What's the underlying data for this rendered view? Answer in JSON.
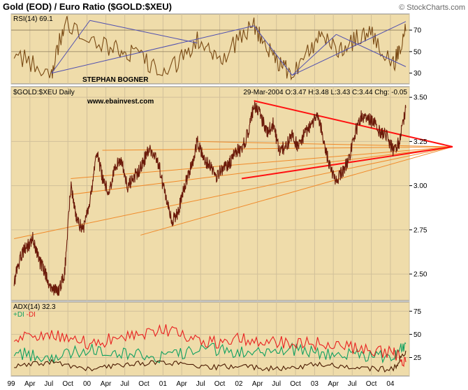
{
  "header": {
    "title": "Gold (EOD) / Euro Ratio ($GOLD:$XEU)",
    "copyright": "© StockCharts.com"
  },
  "colors": {
    "panel_bg": "#efdcaa",
    "grid": "#d1c09a",
    "price": "#6b1a0a",
    "rsi": "#7a4a14",
    "fan": "#f08a2a",
    "trend": "#ff1010",
    "channel": "#5050b0",
    "di_plus": "#10a060",
    "di_minus": "#e82020",
    "adx": "#4a1a00"
  },
  "chart_data": [
    {
      "type": "line",
      "panel": "rsi",
      "label": "RSI(14)",
      "value_label": "69.1",
      "annotation": "STEPHAN BOGNER",
      "ylim": [
        20,
        85
      ],
      "y_ticks": [
        30,
        50,
        70
      ],
      "series": [
        {
          "key": "RSI(14)",
          "x": [
            "1999-01",
            "1999-07",
            "1999-09",
            "2000-04",
            "2000-08",
            "2001-01",
            "2001-06",
            "2001-10",
            "2002-03",
            "2002-06",
            "2002-09",
            "2003-01",
            "2003-05",
            "2003-09",
            "2004-01",
            "2004-03"
          ],
          "values": [
            48,
            30,
            78,
            55,
            48,
            28,
            60,
            45,
            75,
            45,
            28,
            62,
            52,
            70,
            38,
            69.1
          ]
        }
      ]
    },
    {
      "type": "line",
      "panel": "price",
      "label": "$GOLD:$XEU Daily",
      "annotation": "www.ebainvest.com",
      "date_info": "29-Mar-2004",
      "ohlc": {
        "o": "O:3.47",
        "h": "H:3.48",
        "l": "L:3.43",
        "c": "C:3.44",
        "chg": "Chg: -0.05"
      },
      "ylim": [
        2.35,
        3.56
      ],
      "y_ticks": [
        2.5,
        2.75,
        3.0,
        3.25,
        3.5
      ],
      "x_ticks": [
        "99",
        "Apr",
        "Jul",
        "Oct",
        "00",
        "Apr",
        "Jul",
        "Oct",
        "01",
        "Apr",
        "Jul",
        "Oct",
        "02",
        "Apr",
        "Jul",
        "Oct",
        "03",
        "Apr",
        "Jul",
        "Oct",
        "04"
      ],
      "series": [
        {
          "key": "$GOLD:$XEU",
          "x": [
            "1999-01",
            "1999-02",
            "1999-03",
            "1999-04",
            "1999-05",
            "1999-06",
            "1999-07",
            "1999-08",
            "1999-09",
            "1999-10",
            "1999-11",
            "1999-12",
            "2000-01",
            "2000-02",
            "2000-03",
            "2000-04",
            "2000-05",
            "2000-06",
            "2000-07",
            "2000-08",
            "2000-09",
            "2000-10",
            "2000-11",
            "2000-12",
            "2001-01",
            "2001-02",
            "2001-03",
            "2001-04",
            "2001-05",
            "2001-06",
            "2001-07",
            "2001-08",
            "2001-09",
            "2001-10",
            "2001-11",
            "2001-12",
            "2002-01",
            "2002-02",
            "2002-03",
            "2002-04",
            "2002-05",
            "2002-06",
            "2002-07",
            "2002-08",
            "2002-09",
            "2002-10",
            "2002-11",
            "2002-12",
            "2003-01",
            "2003-02",
            "2003-03",
            "2003-04",
            "2003-05",
            "2003-06",
            "2003-07",
            "2003-08",
            "2003-09",
            "2003-10",
            "2003-11",
            "2003-12",
            "2004-01",
            "2004-02",
            "2004-03"
          ],
          "values": [
            2.45,
            2.6,
            2.65,
            2.7,
            2.58,
            2.5,
            2.42,
            2.4,
            2.5,
            3.0,
            2.8,
            2.75,
            2.9,
            3.2,
            3.05,
            2.95,
            3.1,
            3.15,
            3.0,
            3.05,
            3.1,
            3.18,
            3.2,
            3.1,
            2.92,
            2.8,
            2.85,
            3.0,
            3.1,
            3.25,
            3.15,
            3.12,
            3.05,
            3.1,
            3.12,
            3.2,
            3.2,
            3.3,
            3.45,
            3.4,
            3.3,
            3.35,
            3.2,
            3.22,
            3.28,
            3.22,
            3.3,
            3.35,
            3.4,
            3.25,
            3.1,
            3.02,
            3.08,
            3.15,
            3.3,
            3.4,
            3.38,
            3.35,
            3.3,
            3.28,
            3.2,
            3.25,
            3.44
          ]
        }
      ]
    },
    {
      "type": "line",
      "panel": "adx",
      "label": "ADX(14)",
      "value_label": "32.3",
      "legend": [
        "+DI",
        "-DI"
      ],
      "ylim": [
        5,
        85
      ],
      "y_ticks": [
        25,
        50,
        75
      ],
      "series": [
        {
          "key": "+DI",
          "x": [
            "1999-01",
            "1999-07",
            "2000-01",
            "2000-07",
            "2001-01",
            "2001-07",
            "2002-01",
            "2002-07",
            "2003-01",
            "2003-07",
            "2004-01",
            "2004-03"
          ],
          "values": [
            30,
            25,
            35,
            30,
            25,
            35,
            30,
            35,
            30,
            28,
            25,
            40
          ]
        },
        {
          "key": "-DI",
          "x": [
            "1999-01",
            "1999-07",
            "2000-01",
            "2000-07",
            "2001-01",
            "2001-07",
            "2002-01",
            "2002-07",
            "2003-01",
            "2003-07",
            "2004-01",
            "2004-03"
          ],
          "values": [
            45,
            50,
            40,
            48,
            55,
            40,
            45,
            42,
            40,
            35,
            30,
            20
          ]
        },
        {
          "key": "ADX",
          "x": [
            "1999-01",
            "1999-07",
            "2000-01",
            "2000-07",
            "2001-01",
            "2001-07",
            "2002-01",
            "2002-07",
            "2003-01",
            "2003-07",
            "2004-01",
            "2004-03"
          ],
          "values": [
            15,
            20,
            12,
            18,
            20,
            14,
            16,
            12,
            18,
            14,
            12,
            32.3
          ]
        }
      ]
    }
  ]
}
